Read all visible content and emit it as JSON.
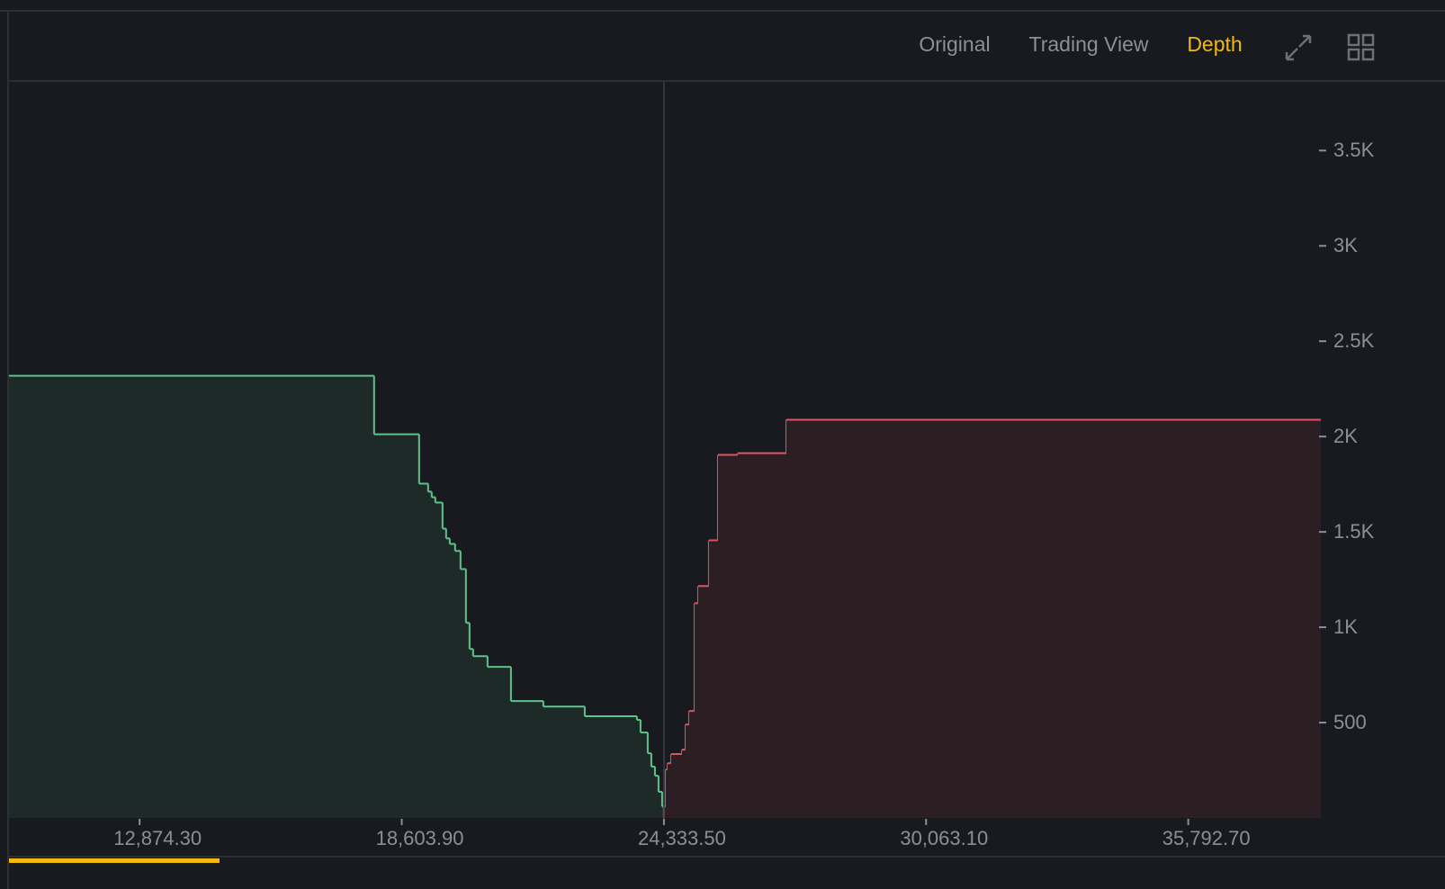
{
  "nav": [
    "Original",
    "Trading View",
    "Depth"
  ],
  "chart_data": {
    "type": "depth",
    "xlim": [
      10020,
      38690
    ],
    "ylim": [
      0,
      3860
    ],
    "xticks": [
      {
        "value": 12874.3,
        "label": "12,874.30"
      },
      {
        "value": 18603.9,
        "label": "18,603.90"
      },
      {
        "value": 24333.5,
        "label": "24,333.50"
      },
      {
        "value": 30063.1,
        "label": "30,063.10"
      },
      {
        "value": 35792.7,
        "label": "35,792.70"
      }
    ],
    "yticks": [
      500,
      {
        "value": 1000,
        "label": "1K"
      },
      {
        "value": 1500,
        "label": "1.5K"
      },
      {
        "value": 2000,
        "label": "2K"
      },
      {
        "value": 2500,
        "label": "2.5K"
      },
      {
        "value": 3000,
        "label": "3K"
      },
      {
        "value": 3500,
        "label": "3.5K"
      }
    ],
    "series": [
      {
        "side": "bid",
        "color": "#5cc389",
        "fill": "#1e2a27",
        "x": [
          17999,
          18983,
          19180,
          19258,
          19337,
          19495,
          19573,
          19652,
          19770,
          19888,
          20006,
          20085,
          20163,
          20478,
          20990,
          21698,
          22603,
          23743,
          23822,
          23979,
          24058,
          24137,
          24215,
          24294,
          24333.5
        ],
        "values": [
          2319,
          2012,
          1753,
          1711,
          1682,
          1654,
          1517,
          1466,
          1437,
          1400,
          1305,
          1023,
          886,
          848,
          792,
          613,
          584,
          533,
          514,
          448,
          339,
          269,
          221,
          137,
          60
        ]
      },
      {
        "side": "ask",
        "color": "#e0535f",
        "fill": "#2c1f24",
        "x": [
          24333.5,
          24373,
          24412,
          24491,
          24727,
          24806,
          24884,
          25002,
          25081,
          25317,
          25514,
          25947,
          27009
        ],
        "values": [
          60,
          254,
          287,
          335,
          358,
          490,
          561,
          1126,
          1216,
          1456,
          1904,
          1913,
          2088
        ]
      }
    ]
  }
}
